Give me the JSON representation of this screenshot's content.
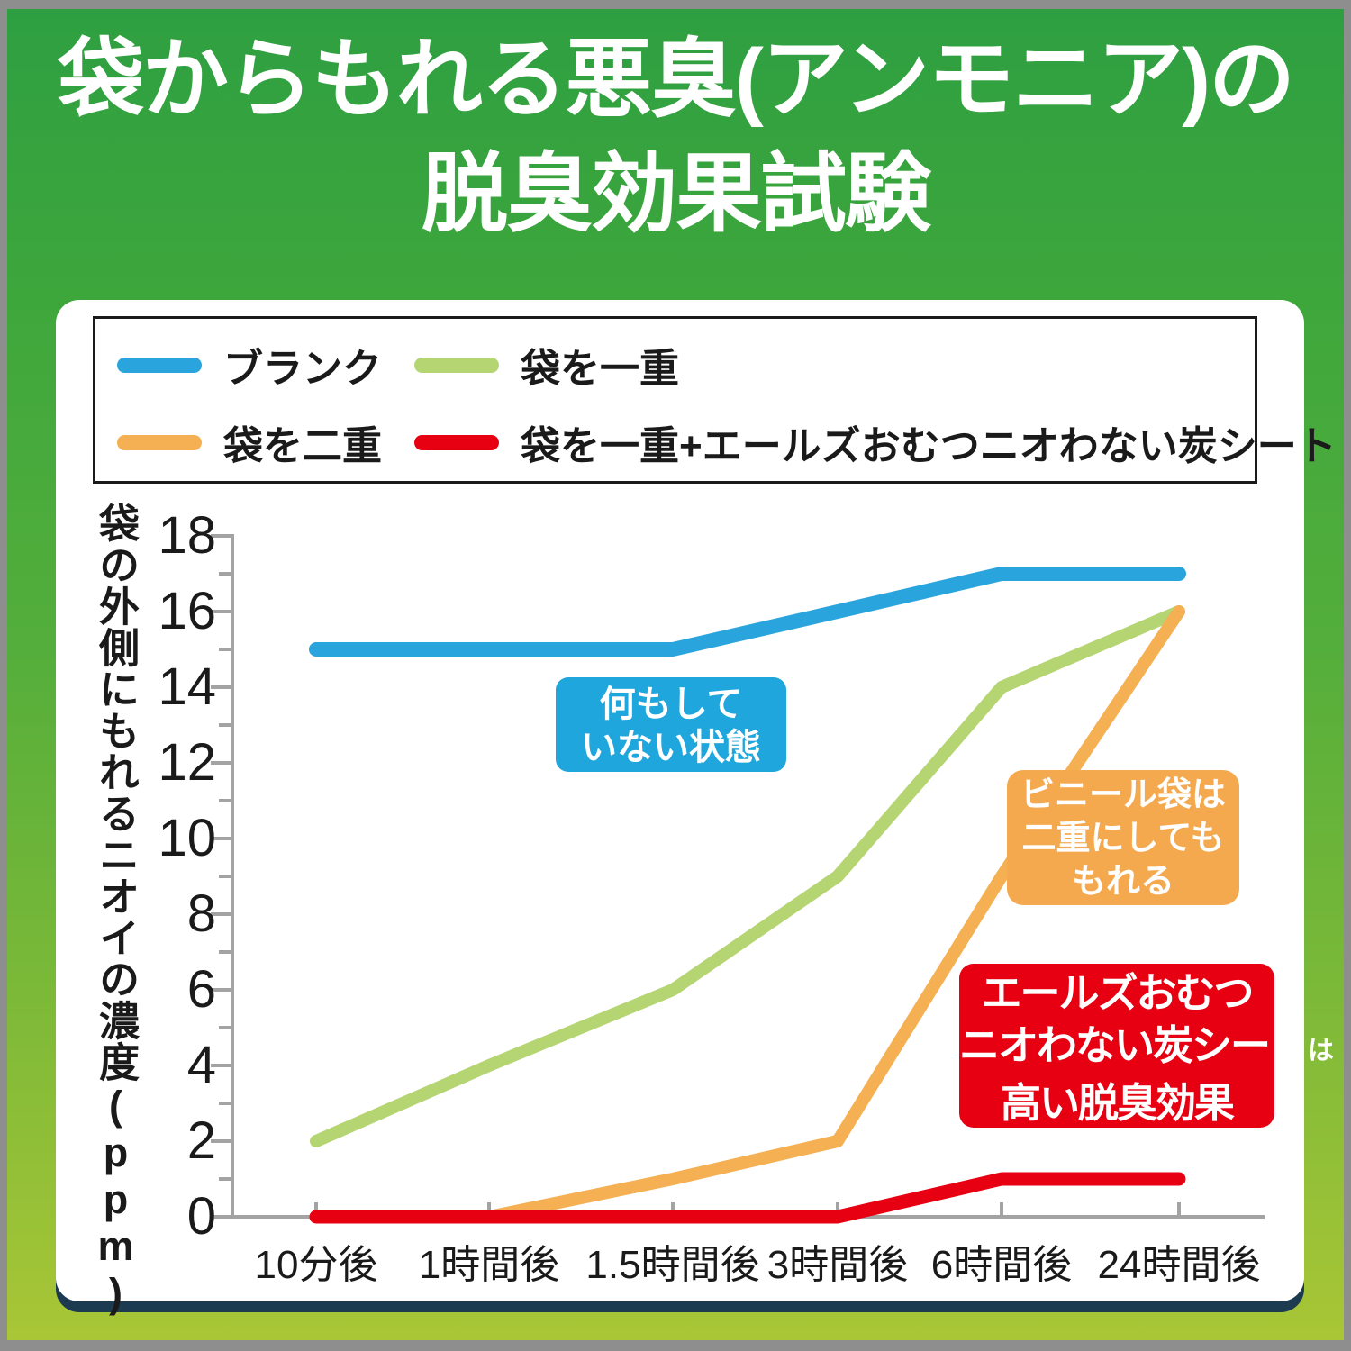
{
  "title": {
    "line1": "袋からもれる悪臭(アンモニア)の",
    "line2": "脱臭効果試験"
  },
  "legend": {
    "items": [
      {
        "label": "ブランク",
        "color": "#29a4dc"
      },
      {
        "label": "袋を一重",
        "color": "#b5d573"
      },
      {
        "label": "袋を二重",
        "color": "#f4b052"
      },
      {
        "label": "袋を一重+エールズおむつニオわない炭シート",
        "color": "#e60012"
      }
    ]
  },
  "y_axis": {
    "label": "袋の外側にもれるニオイの濃度(ppm)",
    "tick_values": [
      0,
      2,
      4,
      6,
      8,
      10,
      12,
      14,
      16,
      18
    ],
    "min": 0,
    "max": 18
  },
  "x_axis": {
    "categories": [
      "10分後",
      "1時間後",
      "1.5時間後",
      "3時間後",
      "6時間後",
      "24時間後"
    ]
  },
  "annotations": {
    "blank_note": {
      "lines": [
        "何もして",
        "いない状態"
      ],
      "color": "#1ea6dd"
    },
    "double_bag_note": {
      "lines": [
        "ビニール袋は",
        "二重にしても",
        "もれる"
      ],
      "color": "#f5a94e"
    },
    "charcoal_note": {
      "line1": "エールズおむつ",
      "line2_main": "ニオわない炭シート",
      "line2_small": "は",
      "line3": "高い脱臭効果",
      "color": "#e60012"
    }
  },
  "chart_data": {
    "type": "line",
    "title": "袋からもれる悪臭(アンモニア)の脱臭効果試験",
    "categories": [
      "10分後",
      "1時間後",
      "1.5時間後",
      "3時間後",
      "6時間後",
      "24時間後"
    ],
    "series": [
      {
        "name": "ブランク",
        "color": "#29a4dc",
        "values": [
          15,
          15,
          15,
          16,
          17,
          17
        ]
      },
      {
        "name": "袋を一重",
        "color": "#b5d573",
        "values": [
          2,
          4,
          6,
          9,
          14,
          16
        ]
      },
      {
        "name": "袋を二重",
        "color": "#f4b052",
        "values": [
          0,
          0,
          1,
          2,
          9,
          16
        ]
      },
      {
        "name": "袋を一重+エールズおむつニオわない炭シート",
        "color": "#e60012",
        "values": [
          0,
          0,
          0,
          0,
          1,
          1
        ]
      }
    ],
    "xlabel": "",
    "ylabel": "袋の外側にもれるニオイの濃度(ppm)",
    "ylim": [
      0,
      18
    ],
    "y_tick_step": 2,
    "grid": false,
    "legend_position": "top"
  }
}
